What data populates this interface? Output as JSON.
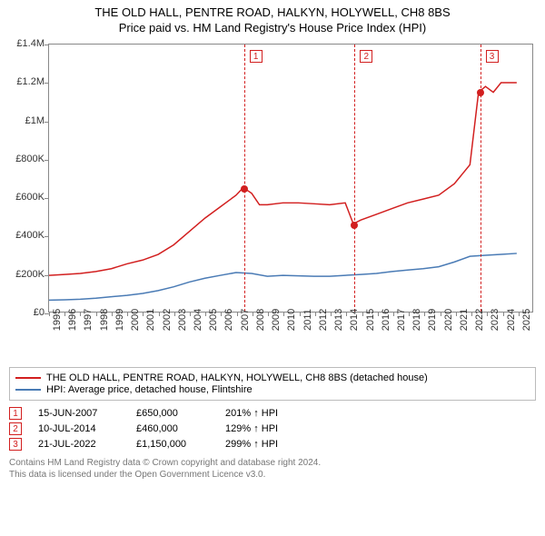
{
  "title_line1": "THE OLD HALL, PENTRE ROAD, HALKYN, HOLYWELL, CH8 8BS",
  "title_line2": "Price paid vs. HM Land Registry's House Price Index (HPI)",
  "chart": {
    "type": "line",
    "xmin": 1995,
    "xmax": 2026,
    "ymin": 0,
    "ymax": 1400000,
    "ytick_step": 200000,
    "yticklabels": [
      "£0",
      "£200K",
      "£400K",
      "£600K",
      "£800K",
      "£1M",
      "£1.2M",
      "£1.4M"
    ],
    "xticks": [
      1995,
      1996,
      1997,
      1998,
      1999,
      2000,
      2001,
      2002,
      2003,
      2004,
      2005,
      2006,
      2007,
      2008,
      2009,
      2010,
      2011,
      2012,
      2013,
      2014,
      2015,
      2016,
      2017,
      2018,
      2019,
      2020,
      2021,
      2022,
      2023,
      2024,
      2025
    ],
    "background_color": "#ffffff",
    "border_color": "#888888",
    "series": [
      {
        "name": "price_paid",
        "color": "#d21f1f",
        "width": 1.5,
        "points": [
          [
            1995,
            190000
          ],
          [
            1996,
            195000
          ],
          [
            1997,
            200000
          ],
          [
            1998,
            210000
          ],
          [
            1999,
            225000
          ],
          [
            2000,
            250000
          ],
          [
            2001,
            270000
          ],
          [
            2002,
            300000
          ],
          [
            2003,
            350000
          ],
          [
            2004,
            420000
          ],
          [
            2005,
            490000
          ],
          [
            2006,
            550000
          ],
          [
            2007,
            610000
          ],
          [
            2007.46,
            650000
          ],
          [
            2008,
            620000
          ],
          [
            2008.5,
            560000
          ],
          [
            2009,
            560000
          ],
          [
            2010,
            570000
          ],
          [
            2011,
            570000
          ],
          [
            2012,
            565000
          ],
          [
            2013,
            560000
          ],
          [
            2014,
            570000
          ],
          [
            2014.52,
            460000
          ],
          [
            2015,
            480000
          ],
          [
            2016,
            510000
          ],
          [
            2017,
            540000
          ],
          [
            2018,
            570000
          ],
          [
            2019,
            590000
          ],
          [
            2020,
            610000
          ],
          [
            2021,
            670000
          ],
          [
            2022,
            770000
          ],
          [
            2022.55,
            1150000
          ],
          [
            2023,
            1180000
          ],
          [
            2023.5,
            1150000
          ],
          [
            2024,
            1200000
          ],
          [
            2025,
            1200000
          ]
        ]
      },
      {
        "name": "hpi",
        "color": "#4a7bb5",
        "width": 1.5,
        "points": [
          [
            1995,
            60000
          ],
          [
            1996,
            62000
          ],
          [
            1997,
            65000
          ],
          [
            1998,
            70000
          ],
          [
            1999,
            78000
          ],
          [
            2000,
            85000
          ],
          [
            2001,
            95000
          ],
          [
            2002,
            110000
          ],
          [
            2003,
            130000
          ],
          [
            2004,
            155000
          ],
          [
            2005,
            175000
          ],
          [
            2006,
            190000
          ],
          [
            2007,
            205000
          ],
          [
            2008,
            200000
          ],
          [
            2009,
            185000
          ],
          [
            2010,
            190000
          ],
          [
            2011,
            188000
          ],
          [
            2012,
            185000
          ],
          [
            2013,
            185000
          ],
          [
            2014,
            190000
          ],
          [
            2015,
            195000
          ],
          [
            2016,
            200000
          ],
          [
            2017,
            210000
          ],
          [
            2018,
            218000
          ],
          [
            2019,
            225000
          ],
          [
            2020,
            235000
          ],
          [
            2021,
            260000
          ],
          [
            2022,
            290000
          ],
          [
            2023,
            295000
          ],
          [
            2024,
            300000
          ],
          [
            2025,
            305000
          ]
        ]
      }
    ],
    "markers": [
      {
        "n": "1",
        "x": 2007.46,
        "y": 650000,
        "color": "#d21f1f"
      },
      {
        "n": "2",
        "x": 2014.52,
        "y": 460000,
        "color": "#d21f1f"
      },
      {
        "n": "3",
        "x": 2022.55,
        "y": 1150000,
        "color": "#d21f1f"
      }
    ]
  },
  "legend": {
    "items": [
      {
        "label": "THE OLD HALL, PENTRE ROAD, HALKYN, HOLYWELL, CH8 8BS (detached house)",
        "color": "#d21f1f"
      },
      {
        "label": "HPI: Average price, detached house, Flintshire",
        "color": "#4a7bb5"
      }
    ]
  },
  "sales": [
    {
      "n": "1",
      "date": "15-JUN-2007",
      "price": "£650,000",
      "pct": "201% ↑ HPI",
      "color": "#d21f1f"
    },
    {
      "n": "2",
      "date": "10-JUL-2014",
      "price": "£460,000",
      "pct": "129% ↑ HPI",
      "color": "#d21f1f"
    },
    {
      "n": "3",
      "date": "21-JUL-2022",
      "price": "£1,150,000",
      "pct": "299% ↑ HPI",
      "color": "#d21f1f"
    }
  ],
  "footer_line1": "Contains HM Land Registry data © Crown copyright and database right 2024.",
  "footer_line2": "This data is licensed under the Open Government Licence v3.0."
}
